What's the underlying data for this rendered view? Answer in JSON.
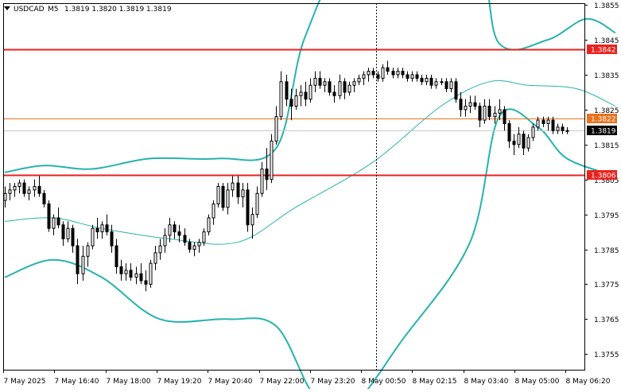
{
  "header": {
    "symbol": "USDCAD",
    "timeframe": "M5",
    "ohlc": "1.3819 1.3820 1.3819 1.3819"
  },
  "colors": {
    "background": "#ffffff",
    "frame": "#000000",
    "candle": "#000000",
    "bollinger": "#26b3ad",
    "middle_band": "#26b3ad",
    "resistance": "#e8221e",
    "recent_level": "#e8721e",
    "bid_line": "#c8c8c8",
    "label_red": "#e8221e",
    "label_orange": "#e8721e",
    "label_black": "#000000"
  },
  "chart_data": {
    "type": "candlestick",
    "title": "USDCAD,M5",
    "ylim": [
      1.37505,
      1.38555
    ],
    "y_ticks": [
      "1.3855",
      "1.3845",
      "1.3835",
      "1.3825",
      "1.3815",
      "1.3805",
      "1.3795",
      "1.3785",
      "1.3775",
      "1.3765",
      "1.3755"
    ],
    "x_ticks": [
      "7 May 2025",
      "7 May 16:40",
      "7 May 18:00",
      "7 May 19:20",
      "7 May 20:40",
      "7 May 22:00",
      "7 May 23:20",
      "8 May 00:50",
      "8 May 02:15",
      "8 May 03:40",
      "8 May 05:00",
      "8 May 06:20"
    ],
    "horizontal_levels": [
      {
        "label": "1.3842",
        "value": 1.38422,
        "style": "red"
      },
      {
        "label": "1.3822",
        "value": 1.38225,
        "style": "orange"
      },
      {
        "label": "1.3819",
        "value": 1.3819,
        "style": "bid"
      },
      {
        "label": "1.3806",
        "value": 1.38063,
        "style": "red"
      }
    ],
    "candles": [
      [
        1.3799,
        1.3803,
        1.3797,
        1.3801
      ],
      [
        1.3801,
        1.3804,
        1.3799,
        1.3802
      ],
      [
        1.3802,
        1.3804,
        1.38,
        1.3803
      ],
      [
        1.3803,
        1.3805,
        1.3801,
        1.3804
      ],
      [
        1.3804,
        1.3805,
        1.38,
        1.3801
      ],
      [
        1.3801,
        1.3803,
        1.3799,
        1.3802
      ],
      [
        1.3802,
        1.3805,
        1.38,
        1.3803
      ],
      [
        1.3803,
        1.3806,
        1.38,
        1.3801
      ],
      [
        1.3801,
        1.3802,
        1.3797,
        1.3798
      ],
      [
        1.3798,
        1.3799,
        1.379,
        1.3791
      ],
      [
        1.3791,
        1.3795,
        1.3789,
        1.3794
      ],
      [
        1.3794,
        1.3797,
        1.3791,
        1.3792
      ],
      [
        1.3792,
        1.3793,
        1.3786,
        1.3788
      ],
      [
        1.3788,
        1.3793,
        1.3787,
        1.3791
      ],
      [
        1.3791,
        1.3792,
        1.3784,
        1.3786
      ],
      [
        1.3786,
        1.3788,
        1.3775,
        1.3778
      ],
      [
        1.3778,
        1.3786,
        1.3776,
        1.3783
      ],
      [
        1.3783,
        1.3787,
        1.378,
        1.3786
      ],
      [
        1.3786,
        1.3792,
        1.3785,
        1.3791
      ],
      [
        1.3791,
        1.3794,
        1.3788,
        1.379
      ],
      [
        1.379,
        1.3793,
        1.3788,
        1.3792
      ],
      [
        1.3792,
        1.3795,
        1.3789,
        1.379
      ],
      [
        1.379,
        1.3792,
        1.3784,
        1.3786
      ],
      [
        1.3786,
        1.3788,
        1.3778,
        1.378
      ],
      [
        1.378,
        1.3782,
        1.3776,
        1.3778
      ],
      [
        1.3778,
        1.3781,
        1.3776,
        1.3779
      ],
      [
        1.3779,
        1.3781,
        1.3776,
        1.3777
      ],
      [
        1.3777,
        1.378,
        1.3775,
        1.3778
      ],
      [
        1.3778,
        1.3781,
        1.3775,
        1.3776
      ],
      [
        1.3776,
        1.3779,
        1.3773,
        1.3775
      ],
      [
        1.3775,
        1.3782,
        1.3774,
        1.3781
      ],
      [
        1.3781,
        1.3786,
        1.3779,
        1.3784
      ],
      [
        1.3784,
        1.3788,
        1.3782,
        1.3786
      ],
      [
        1.3786,
        1.3791,
        1.3784,
        1.3789
      ],
      [
        1.3789,
        1.3794,
        1.3787,
        1.3792
      ],
      [
        1.3792,
        1.3793,
        1.3788,
        1.379
      ],
      [
        1.379,
        1.3792,
        1.3787,
        1.3789
      ],
      [
        1.3789,
        1.3791,
        1.3786,
        1.3787
      ],
      [
        1.3787,
        1.3788,
        1.3784,
        1.3785
      ],
      [
        1.3785,
        1.3787,
        1.3783,
        1.3786
      ],
      [
        1.3786,
        1.3788,
        1.3784,
        1.3787
      ],
      [
        1.3787,
        1.3791,
        1.3786,
        1.379
      ],
      [
        1.379,
        1.3795,
        1.3789,
        1.3794
      ],
      [
        1.3794,
        1.3799,
        1.3792,
        1.3798
      ],
      [
        1.3798,
        1.3804,
        1.3797,
        1.3803
      ],
      [
        1.3803,
        1.3804,
        1.3796,
        1.3797
      ],
      [
        1.3797,
        1.3804,
        1.3795,
        1.3802
      ],
      [
        1.3802,
        1.3806,
        1.38,
        1.3804
      ],
      [
        1.3804,
        1.3806,
        1.3798,
        1.38
      ],
      [
        1.38,
        1.3804,
        1.3797,
        1.3802
      ],
      [
        1.3802,
        1.3804,
        1.379,
        1.3792
      ],
      [
        1.3792,
        1.3797,
        1.3788,
        1.3795
      ],
      [
        1.3795,
        1.3803,
        1.3794,
        1.3801
      ],
      [
        1.3801,
        1.381,
        1.38,
        1.3808
      ],
      [
        1.3808,
        1.3814,
        1.3802,
        1.3805
      ],
      [
        1.3805,
        1.3818,
        1.3804,
        1.3816
      ],
      [
        1.3816,
        1.3826,
        1.3815,
        1.3823
      ],
      [
        1.3823,
        1.3836,
        1.3822,
        1.3833
      ],
      [
        1.3833,
        1.3835,
        1.3826,
        1.3828
      ],
      [
        1.3828,
        1.3831,
        1.3822,
        1.3826
      ],
      [
        1.3826,
        1.3831,
        1.3825,
        1.3829
      ],
      [
        1.3829,
        1.3832,
        1.3826,
        1.383
      ],
      [
        1.383,
        1.3833,
        1.3826,
        1.3828
      ],
      [
        1.3828,
        1.3834,
        1.3827,
        1.3832
      ],
      [
        1.3832,
        1.3836,
        1.383,
        1.3834
      ],
      [
        1.3834,
        1.3836,
        1.3831,
        1.3832
      ],
      [
        1.3832,
        1.3834,
        1.383,
        1.3833
      ],
      [
        1.3833,
        1.3834,
        1.3829,
        1.383
      ],
      [
        1.383,
        1.3832,
        1.3827,
        1.3829
      ],
      [
        1.3829,
        1.3835,
        1.3828,
        1.3833
      ],
      [
        1.3833,
        1.3834,
        1.3828,
        1.383
      ],
      [
        1.383,
        1.3833,
        1.3829,
        1.3832
      ],
      [
        1.3832,
        1.3834,
        1.383,
        1.3833
      ],
      [
        1.3833,
        1.3835,
        1.3832,
        1.3834
      ],
      [
        1.3834,
        1.3836,
        1.3832,
        1.3835
      ],
      [
        1.3835,
        1.3837,
        1.3833,
        1.3836
      ],
      [
        1.3836,
        1.3837,
        1.3834,
        1.3835
      ],
      [
        1.3835,
        1.3836,
        1.3833,
        1.3834
      ],
      [
        1.3834,
        1.3838,
        1.3833,
        1.3837
      ],
      [
        1.3837,
        1.3839,
        1.3835,
        1.3836
      ],
      [
        1.3836,
        1.3837,
        1.3834,
        1.3835
      ],
      [
        1.3835,
        1.3837,
        1.3834,
        1.3836
      ],
      [
        1.3836,
        1.3837,
        1.3834,
        1.3835
      ],
      [
        1.3835,
        1.3836,
        1.3833,
        1.3834
      ],
      [
        1.3834,
        1.3836,
        1.3833,
        1.3835
      ],
      [
        1.3835,
        1.3836,
        1.3833,
        1.3834
      ],
      [
        1.3834,
        1.3835,
        1.3832,
        1.3833
      ],
      [
        1.3833,
        1.3835,
        1.3832,
        1.3834
      ],
      [
        1.3834,
        1.3835,
        1.3831,
        1.3832
      ],
      [
        1.3832,
        1.3834,
        1.3831,
        1.3833
      ],
      [
        1.3833,
        1.3834,
        1.3832,
        1.3833
      ],
      [
        1.3833,
        1.3834,
        1.383,
        1.3831
      ],
      [
        1.3831,
        1.3834,
        1.383,
        1.3833
      ],
      [
        1.3833,
        1.3834,
        1.3827,
        1.3828
      ],
      [
        1.3828,
        1.383,
        1.3823,
        1.3825
      ],
      [
        1.3825,
        1.3828,
        1.3823,
        1.3826
      ],
      [
        1.3826,
        1.3829,
        1.3824,
        1.3827
      ],
      [
        1.3827,
        1.3829,
        1.3825,
        1.3826
      ],
      [
        1.3826,
        1.3827,
        1.382,
        1.3822
      ],
      [
        1.3822,
        1.3828,
        1.3821,
        1.3826
      ],
      [
        1.3826,
        1.3828,
        1.3822,
        1.3823
      ],
      [
        1.3823,
        1.3826,
        1.3821,
        1.3824
      ],
      [
        1.3824,
        1.3828,
        1.3822,
        1.3825
      ],
      [
        1.3825,
        1.3826,
        1.3819,
        1.3821
      ],
      [
        1.3821,
        1.3822,
        1.3814,
        1.3816
      ],
      [
        1.3816,
        1.3818,
        1.3812,
        1.3815
      ],
      [
        1.3815,
        1.382,
        1.3814,
        1.3818
      ],
      [
        1.3818,
        1.3819,
        1.3812,
        1.3814
      ],
      [
        1.3814,
        1.3818,
        1.3813,
        1.3817
      ],
      [
        1.3817,
        1.3821,
        1.3816,
        1.382
      ],
      [
        1.382,
        1.3823,
        1.3819,
        1.3822
      ],
      [
        1.3822,
        1.3823,
        1.382,
        1.3821
      ],
      [
        1.3821,
        1.3823,
        1.3819,
        1.3822
      ],
      [
        1.3822,
        1.3823,
        1.3818,
        1.3819
      ],
      [
        1.3819,
        1.3821,
        1.3818,
        1.382
      ],
      [
        1.382,
        1.3821,
        1.3818,
        1.3819
      ],
      [
        1.3819,
        1.382,
        1.3818,
        1.3819
      ]
    ],
    "upper_band": [
      [
        0,
        1.3807
      ],
      [
        8,
        1.3809
      ],
      [
        18,
        1.3808
      ],
      [
        30,
        1.3811
      ],
      [
        44,
        1.3811
      ],
      [
        56,
        1.3814
      ],
      [
        62,
        1.3846
      ],
      [
        72,
        1.3868
      ],
      [
        96,
        1.387
      ],
      [
        102,
        1.3844
      ],
      [
        112,
        1.3845
      ],
      [
        120,
        1.3851
      ],
      [
        126,
        1.3847
      ]
    ],
    "middle_band": [
      [
        0,
        1.3793
      ],
      [
        10,
        1.3794
      ],
      [
        20,
        1.3791
      ],
      [
        34,
        1.3788
      ],
      [
        48,
        1.3787
      ],
      [
        60,
        1.3797
      ],
      [
        76,
        1.381
      ],
      [
        90,
        1.3826
      ],
      [
        100,
        1.3833
      ],
      [
        108,
        1.3832
      ],
      [
        118,
        1.3831
      ],
      [
        126,
        1.3826
      ]
    ],
    "lower_band": [
      [
        0,
        1.3777
      ],
      [
        10,
        1.3782
      ],
      [
        20,
        1.3777
      ],
      [
        32,
        1.3765
      ],
      [
        46,
        1.3765
      ],
      [
        56,
        1.3763
      ],
      [
        64,
        1.3743
      ],
      [
        72,
        1.3741
      ],
      [
        82,
        1.3759
      ],
      [
        96,
        1.3787
      ],
      [
        102,
        1.3823
      ],
      [
        110,
        1.382
      ],
      [
        116,
        1.3811
      ],
      [
        126,
        1.3806
      ]
    ],
    "time_separator_index": 76.7
  }
}
